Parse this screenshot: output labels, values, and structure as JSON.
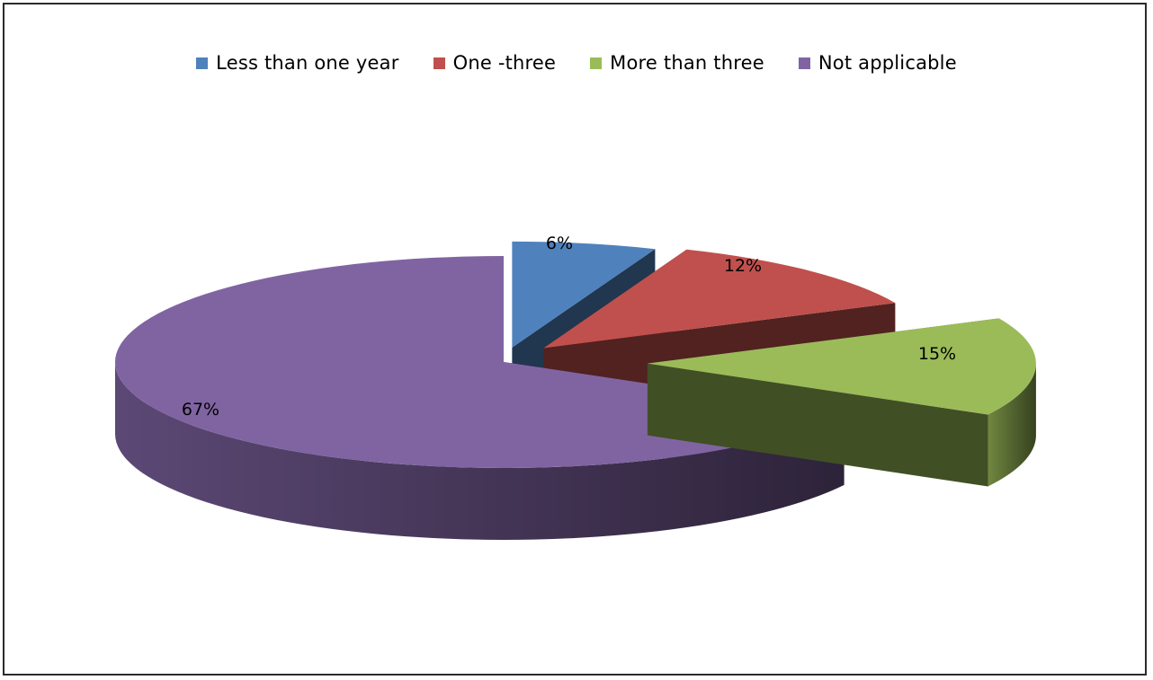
{
  "chart_data": {
    "type": "pie",
    "style": "3d-exploded",
    "title": "",
    "legend_position": "top",
    "series": [
      {
        "name": "Less than one year",
        "value": 6,
        "label": "6%",
        "color": "#4F81BD"
      },
      {
        "name": "One -three",
        "value": 12,
        "label": "12%",
        "color": "#C0504D"
      },
      {
        "name": "More than three",
        "value": 15,
        "label": "15%",
        "color": "#9BBB59"
      },
      {
        "name": "Not applicable",
        "value": 67,
        "label": "67%",
        "color": "#8064A2"
      }
    ]
  }
}
